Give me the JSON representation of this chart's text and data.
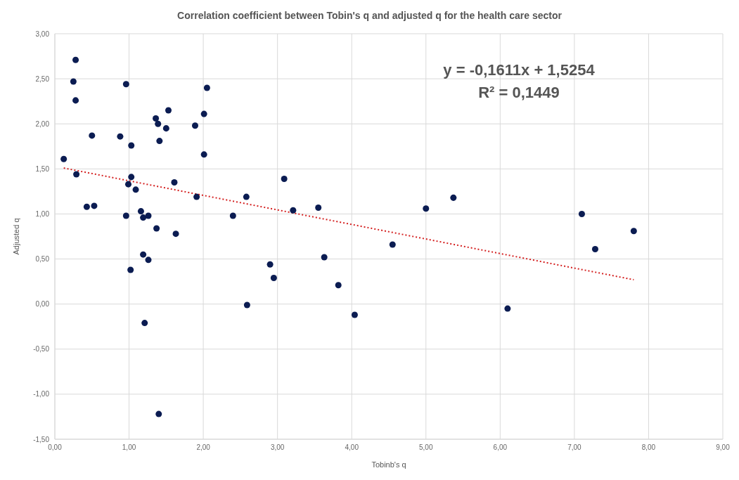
{
  "chart_data": {
    "type": "scatter",
    "title": "Correlation coefficient between Tobin's q and adjusted q for the health care sector",
    "xlabel": "Tobinb's q",
    "ylabel": "Adjusted q",
    "annotations": [
      "y = -0,1611x + 1,5254",
      "R² = 0,1449"
    ],
    "xlim": [
      0,
      9
    ],
    "ylim": [
      -1.5,
      3
    ],
    "xticks": [
      {
        "value": 0,
        "label": "0,00"
      },
      {
        "value": 1,
        "label": "1,00"
      },
      {
        "value": 2,
        "label": "2,00"
      },
      {
        "value": 3,
        "label": "3,00"
      },
      {
        "value": 4,
        "label": "4,00"
      },
      {
        "value": 5,
        "label": "5,00"
      },
      {
        "value": 6,
        "label": "6,00"
      },
      {
        "value": 7,
        "label": "7,00"
      },
      {
        "value": 8,
        "label": "8,00"
      },
      {
        "value": 9,
        "label": "9,00"
      }
    ],
    "yticks": [
      {
        "value": -1.5,
        "label": "-1,50"
      },
      {
        "value": -1,
        "label": "-1,00"
      },
      {
        "value": -0.5,
        "label": "-0,50"
      },
      {
        "value": 0,
        "label": "0,00"
      },
      {
        "value": 0.5,
        "label": "0,50"
      },
      {
        "value": 1,
        "label": "1,00"
      },
      {
        "value": 1.5,
        "label": "1,50"
      },
      {
        "value": 2,
        "label": "2,00"
      },
      {
        "value": 2.5,
        "label": "2,50"
      },
      {
        "value": 3,
        "label": "3,00"
      }
    ],
    "grid": true,
    "series": [
      {
        "marker": "circle",
        "color": "#0b1c52",
        "x": [
          0.12,
          0.28,
          0.25,
          0.28,
          0.5,
          0.96,
          0.88,
          1.03,
          1.36,
          1.39,
          1.53,
          1.5,
          1.41,
          1.89,
          2.01,
          2.05,
          2.01,
          0.29,
          1.03,
          0.99,
          1.09,
          1.61,
          1.91,
          2.58,
          3.09,
          0.43,
          0.53,
          0.96,
          1.16,
          1.19,
          1.26,
          1.37,
          1.63,
          1.19,
          1.26,
          1.02,
          2.4,
          2.9,
          2.95,
          2.59,
          1.21,
          1.4,
          3.21,
          3.55,
          5.0,
          5.37,
          7.1,
          7.28,
          7.8,
          4.55,
          3.63,
          3.82,
          6.1,
          4.04
        ],
        "values": [
          1.61,
          2.71,
          2.47,
          2.26,
          1.87,
          2.44,
          1.86,
          1.76,
          2.06,
          2.0,
          2.15,
          1.95,
          1.81,
          1.98,
          2.11,
          2.4,
          1.66,
          1.44,
          1.41,
          1.33,
          1.27,
          1.35,
          1.19,
          1.19,
          1.39,
          1.08,
          1.09,
          0.98,
          1.03,
          0.96,
          0.98,
          0.84,
          0.78,
          0.55,
          0.49,
          0.38,
          0.98,
          0.44,
          0.29,
          -0.01,
          -0.21,
          -1.22,
          1.04,
          1.07,
          1.06,
          1.18,
          1.0,
          0.61,
          0.81,
          0.66,
          0.52,
          0.21,
          -0.05,
          -0.12
        ]
      },
      {
        "type": "line",
        "marker": "none",
        "color": "#d42020",
        "line_style": "dotted",
        "x": [
          0.12,
          7.8
        ],
        "values": [
          1.51,
          0.27
        ]
      }
    ]
  }
}
